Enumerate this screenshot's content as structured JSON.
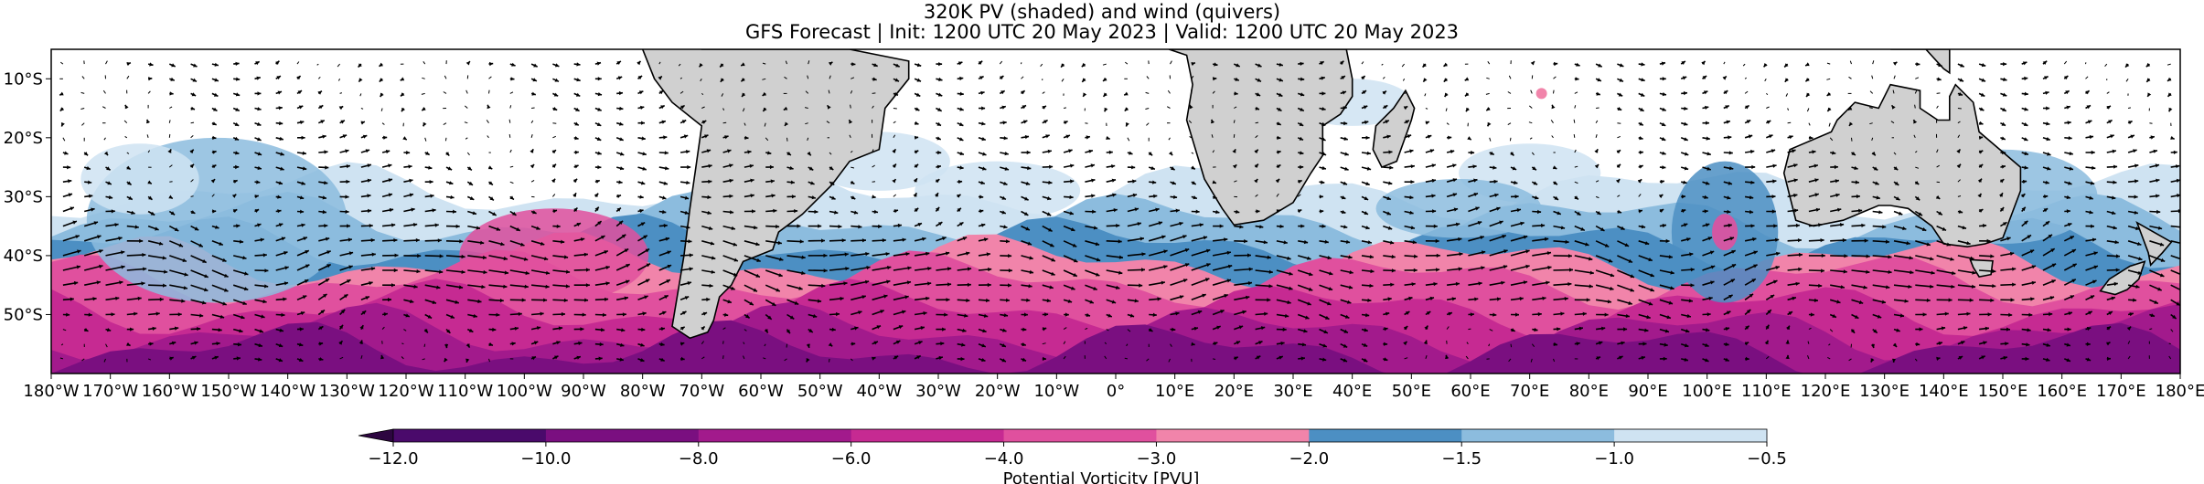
{
  "title": "320K PV (shaded) and wind (quivers)",
  "subtitle": "GFS Forecast | Init: 1200 UTC 20 May 2023 | Valid: 1200 UTC 20 May 2023",
  "colorbar": {
    "label": "Potential Vorticity [PVU]",
    "levels": [
      -12.0,
      -10.0,
      -8.0,
      -6.0,
      -4.0,
      -3.0,
      -2.0,
      -1.5,
      -1.0,
      -0.5
    ],
    "tick_labels": [
      "−12.0",
      "−10.0",
      "−8.0",
      "−6.0",
      "−4.0",
      "−3.0",
      "−2.0",
      "−1.5",
      "−1.0",
      "−0.5"
    ],
    "colors": [
      "#4a0a6b",
      "#7a0f80",
      "#a21a8c",
      "#c62a92",
      "#e0509e",
      "#f184aa",
      "#4c8fc3",
      "#8cbcde",
      "#cfe3f2"
    ],
    "extend": "min"
  },
  "map": {
    "projection": "PlateCarree",
    "lon_range": [
      -180,
      180
    ],
    "lat_range": [
      -60,
      -5
    ],
    "lon_ticks": [
      {
        "value": -180,
        "label": "180°W"
      },
      {
        "value": -170,
        "label": "170°W"
      },
      {
        "value": -160,
        "label": "160°W"
      },
      {
        "value": -150,
        "label": "150°W"
      },
      {
        "value": -140,
        "label": "140°W"
      },
      {
        "value": -130,
        "label": "130°W"
      },
      {
        "value": -120,
        "label": "120°W"
      },
      {
        "value": -110,
        "label": "110°W"
      },
      {
        "value": -100,
        "label": "100°W"
      },
      {
        "value": -90,
        "label": "90°W"
      },
      {
        "value": -80,
        "label": "80°W"
      },
      {
        "value": -70,
        "label": "70°W"
      },
      {
        "value": -60,
        "label": "60°W"
      },
      {
        "value": -50,
        "label": "50°W"
      },
      {
        "value": -40,
        "label": "40°W"
      },
      {
        "value": -30,
        "label": "30°W"
      },
      {
        "value": -20,
        "label": "20°W"
      },
      {
        "value": -10,
        "label": "10°W"
      },
      {
        "value": 0,
        "label": "0°"
      },
      {
        "value": 10,
        "label": "10°E"
      },
      {
        "value": 20,
        "label": "20°E"
      },
      {
        "value": 30,
        "label": "30°E"
      },
      {
        "value": 40,
        "label": "40°E"
      },
      {
        "value": 50,
        "label": "50°E"
      },
      {
        "value": 60,
        "label": "60°E"
      },
      {
        "value": 70,
        "label": "70°E"
      },
      {
        "value": 80,
        "label": "80°E"
      },
      {
        "value": 90,
        "label": "90°E"
      },
      {
        "value": 100,
        "label": "100°E"
      },
      {
        "value": 110,
        "label": "110°E"
      },
      {
        "value": 120,
        "label": "120°E"
      },
      {
        "value": 130,
        "label": "130°E"
      },
      {
        "value": 140,
        "label": "140°E"
      },
      {
        "value": 150,
        "label": "150°E"
      },
      {
        "value": 160,
        "label": "160°E"
      },
      {
        "value": 170,
        "label": "170°E"
      },
      {
        "value": 180,
        "label": "180°E"
      }
    ],
    "lat_ticks": [
      {
        "value": -10,
        "label": "10°S"
      },
      {
        "value": -20,
        "label": "20°S"
      },
      {
        "value": -30,
        "label": "30°S"
      },
      {
        "value": -40,
        "label": "40°S"
      },
      {
        "value": -50,
        "label": "50°S"
      }
    ],
    "land_color": "#d0d0d0",
    "coast_color": "#000000",
    "wind_arrow_color": "#000000"
  }
}
